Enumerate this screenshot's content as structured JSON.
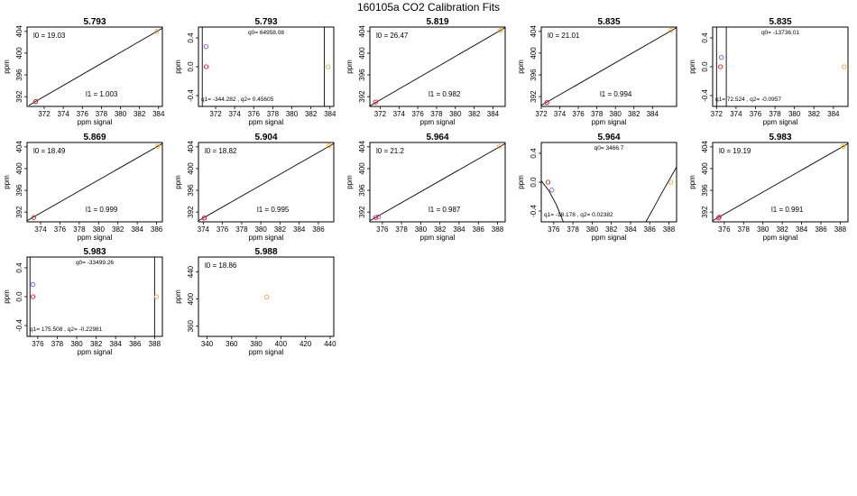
{
  "figure_title": "160105a   CO2 Calibration Fits",
  "axis_text": {
    "xlabel": "ppm signal",
    "ylabel": "ppm"
  },
  "colors": {
    "line": "#000000",
    "point_low": "#e31a1c",
    "point_mid": "#9a4dd6",
    "point_high": "#f5a623"
  },
  "chart_data": [
    {
      "type": "line",
      "title": "5.793",
      "model": "linear",
      "xlim": [
        370.2,
        384.4
      ],
      "ylim": [
        390.2,
        404.8
      ],
      "xticks": [
        372,
        374,
        376,
        378,
        380,
        382,
        384
      ],
      "yticks": [
        392,
        396,
        400,
        404
      ],
      "yticklabels": [
        "392",
        "396",
        "400",
        "404"
      ],
      "line": [
        [
          370.4,
          390.4
        ],
        [
          384.4,
          404.6
        ]
      ],
      "points": [
        {
          "x": 371.1,
          "y": 391.1,
          "c": "point_mid"
        },
        {
          "x": 371.1,
          "y": 391.1,
          "c": "point_low"
        },
        {
          "x": 383.8,
          "y": 404.0,
          "c": "point_high"
        }
      ],
      "annotations": [
        {
          "text": "l0 =  19.03",
          "pos": "top-left"
        },
        {
          "text": "l1 =  1.003",
          "pos": "bottom-mid"
        }
      ]
    },
    {
      "type": "scatter",
      "title": "5.793",
      "model": "quadratic",
      "xlim": [
        370.2,
        384.4
      ],
      "ylim": [
        -0.55,
        0.55
      ],
      "xticks": [
        372,
        374,
        376,
        378,
        380,
        382,
        384
      ],
      "yticks": [
        -0.4,
        0,
        0.4
      ],
      "yticklabels": [
        "-0.4",
        "0.0",
        "0.4"
      ],
      "curve_vlines": [
        [
          370.6,
          -0.55,
          0.55
        ],
        [
          383.4,
          -0.55,
          0.55
        ]
      ],
      "points": [
        {
          "x": 371.0,
          "y": 0.28,
          "c": "point_mid"
        },
        {
          "x": 371.0,
          "y": 0.0,
          "c": "point_low"
        },
        {
          "x": 383.8,
          "y": 0.0,
          "c": "point_high"
        }
      ],
      "annotations": [
        {
          "text": "q0= 64958.08",
          "pos": "top-mid"
        },
        {
          "text": "q1= -344.282 , q2= 0.45605",
          "pos": "bottom-left"
        }
      ]
    },
    {
      "type": "line",
      "title": "5.819",
      "model": "linear",
      "xlim": [
        370.9,
        385.3
      ],
      "ylim": [
        390.2,
        404.8
      ],
      "xticks": [
        372,
        374,
        376,
        378,
        380,
        382,
        384
      ],
      "yticks": [
        392,
        396,
        400,
        404
      ],
      "yticklabels": [
        "392",
        "396",
        "400",
        "404"
      ],
      "line": [
        [
          370.9,
          390.3
        ],
        [
          385.3,
          404.7
        ]
      ],
      "points": [
        {
          "x": 371.5,
          "y": 391.0,
          "c": "point_low"
        },
        {
          "x": 384.8,
          "y": 404.2,
          "c": "point_high"
        }
      ],
      "annotations": [
        {
          "text": "l0 =  26.47",
          "pos": "top-left"
        },
        {
          "text": "l1 =  0.982",
          "pos": "bottom-mid"
        }
      ]
    },
    {
      "type": "line",
      "title": "5.835",
      "model": "linear",
      "xlim": [
        372.0,
        386.6
      ],
      "ylim": [
        390.2,
        404.8
      ],
      "xticks": [
        372,
        374,
        376,
        378,
        380,
        382,
        384
      ],
      "yticks": [
        392,
        396,
        400,
        404
      ],
      "yticklabels": [
        "392",
        "396",
        "400",
        "404"
      ],
      "line": [
        [
          372.0,
          390.4
        ],
        [
          386.6,
          404.7
        ]
      ],
      "points": [
        {
          "x": 372.6,
          "y": 390.9,
          "c": "point_mid"
        },
        {
          "x": 372.6,
          "y": 390.9,
          "c": "point_low"
        },
        {
          "x": 386.0,
          "y": 404.2,
          "c": "point_high"
        }
      ],
      "annotations": [
        {
          "text": "l0 =  21.01",
          "pos": "top-left"
        },
        {
          "text": "l1 =  0.994",
          "pos": "bottom-mid"
        }
      ]
    },
    {
      "type": "scatter",
      "title": "5.835",
      "model": "quadratic",
      "xlim": [
        371.6,
        385.5
      ],
      "ylim": [
        -0.55,
        0.55
      ],
      "xticks": [
        372,
        374,
        376,
        378,
        380,
        382,
        384
      ],
      "yticks": [
        -0.4,
        0,
        0.4
      ],
      "yticklabels": [
        "-0.4",
        "0.0",
        "0.4"
      ],
      "curve_vlines": [
        [
          372.0,
          -0.55,
          0.55
        ],
        [
          373.0,
          -0.55,
          0.55
        ]
      ],
      "points": [
        {
          "x": 372.5,
          "y": 0.13,
          "c": "point_mid"
        },
        {
          "x": 372.4,
          "y": 0.0,
          "c": "point_low"
        },
        {
          "x": 385.1,
          "y": 0.0,
          "c": "point_high"
        }
      ],
      "annotations": [
        {
          "text": "q0= -13736.01",
          "pos": "top-mid"
        },
        {
          "text": "q1= 72.524 , q2= -0.0957",
          "pos": "bottom-left"
        }
      ]
    },
    {
      "type": "line",
      "title": "5.869",
      "model": "linear",
      "xlim": [
        372.6,
        386.6
      ],
      "ylim": [
        390.2,
        404.8
      ],
      "xticks": [
        374,
        376,
        378,
        380,
        382,
        384,
        386
      ],
      "yticks": [
        392,
        396,
        400,
        404
      ],
      "yticklabels": [
        "392",
        "396",
        "400",
        "404"
      ],
      "line": [
        [
          372.6,
          390.4
        ],
        [
          386.6,
          404.6
        ]
      ],
      "points": [
        {
          "x": 373.3,
          "y": 391.0,
          "c": "point_low"
        },
        {
          "x": 386.1,
          "y": 404.1,
          "c": "point_high"
        }
      ],
      "annotations": [
        {
          "text": "l0 =  18.49",
          "pos": "top-left"
        },
        {
          "text": "l1 =  0.999",
          "pos": "bottom-mid"
        }
      ]
    },
    {
      "type": "line",
      "title": "5.904",
      "model": "linear",
      "xlim": [
        373.5,
        387.6
      ],
      "ylim": [
        390.2,
        404.8
      ],
      "xticks": [
        374,
        376,
        378,
        380,
        382,
        384,
        386
      ],
      "yticks": [
        392,
        396,
        400,
        404
      ],
      "yticklabels": [
        "392",
        "396",
        "400",
        "404"
      ],
      "line": [
        [
          373.5,
          390.4
        ],
        [
          387.6,
          404.6
        ]
      ],
      "points": [
        {
          "x": 374.1,
          "y": 390.9,
          "c": "point_mid"
        },
        {
          "x": 374.1,
          "y": 390.9,
          "c": "point_low"
        },
        {
          "x": 387.1,
          "y": 404.2,
          "c": "point_high"
        }
      ],
      "annotations": [
        {
          "text": "l0 =  18.82",
          "pos": "top-left"
        },
        {
          "text": "l1 =  0.995",
          "pos": "bottom-mid"
        }
      ]
    },
    {
      "type": "line",
      "title": "5.964",
      "model": "linear",
      "xlim": [
        374.7,
        388.8
      ],
      "ylim": [
        390.2,
        404.8
      ],
      "xticks": [
        376,
        378,
        380,
        382,
        384,
        386,
        388
      ],
      "yticks": [
        392,
        396,
        400,
        404
      ],
      "yticklabels": [
        "392",
        "396",
        "400",
        "404"
      ],
      "line": [
        [
          374.7,
          390.4
        ],
        [
          388.8,
          404.6
        ]
      ],
      "points": [
        {
          "x": 375.3,
          "y": 391.0,
          "c": "point_low"
        },
        {
          "x": 375.6,
          "y": 391.1,
          "c": "point_mid"
        },
        {
          "x": 388.2,
          "y": 404.1,
          "c": "point_high"
        }
      ],
      "annotations": [
        {
          "text": "l0 =  21.2",
          "pos": "top-left"
        },
        {
          "text": "l1 =  0.987",
          "pos": "bottom-mid"
        }
      ]
    },
    {
      "type": "scatter",
      "title": "5.964",
      "model": "quadratic",
      "xlim": [
        374.7,
        388.8
      ],
      "ylim": [
        -0.55,
        0.55
      ],
      "xticks": [
        376,
        378,
        380,
        382,
        384,
        386,
        388
      ],
      "yticks": [
        -0.4,
        0,
        0.4
      ],
      "yticklabels": [
        "-0.4",
        "0.0",
        "0.4"
      ],
      "curve_pts": [
        [
          [
            374.7,
            0.02
          ],
          [
            375.5,
            -0.12
          ],
          [
            376.3,
            -0.32
          ],
          [
            377.0,
            -0.55
          ]
        ],
        [
          [
            385.6,
            -0.55
          ],
          [
            386.4,
            -0.36
          ],
          [
            387.3,
            -0.14
          ],
          [
            388.8,
            0.21
          ]
        ]
      ],
      "points": [
        {
          "x": 375.4,
          "y": 0.0,
          "c": "point_low"
        },
        {
          "x": 375.8,
          "y": -0.11,
          "c": "point_mid"
        },
        {
          "x": 388.2,
          "y": 0.0,
          "c": "point_high"
        }
      ],
      "annotations": [
        {
          "text": "q0= 3466.7",
          "pos": "top-mid"
        },
        {
          "text": "q1= -18.178 , q2= 0.02382",
          "pos": "bottom-left"
        }
      ]
    },
    {
      "type": "line",
      "title": "5.983",
      "model": "linear",
      "xlim": [
        374.8,
        388.8
      ],
      "ylim": [
        390.2,
        404.8
      ],
      "xticks": [
        376,
        378,
        380,
        382,
        384,
        386,
        388
      ],
      "yticks": [
        392,
        396,
        400,
        404
      ],
      "yticklabels": [
        "392",
        "396",
        "400",
        "404"
      ],
      "line": [
        [
          374.8,
          390.4
        ],
        [
          388.8,
          404.6
        ]
      ],
      "points": [
        {
          "x": 375.4,
          "y": 390.9,
          "c": "point_low"
        },
        {
          "x": 375.5,
          "y": 391.1,
          "c": "point_mid"
        },
        {
          "x": 388.3,
          "y": 404.1,
          "c": "point_high"
        }
      ],
      "annotations": [
        {
          "text": "l0 =  19.19",
          "pos": "top-left"
        },
        {
          "text": "l1 =  0.991",
          "pos": "bottom-mid"
        }
      ]
    },
    {
      "type": "scatter",
      "title": "5.983",
      "model": "quadratic",
      "xlim": [
        374.9,
        388.8
      ],
      "ylim": [
        -0.55,
        0.55
      ],
      "xticks": [
        376,
        378,
        380,
        382,
        384,
        386,
        388
      ],
      "yticks": [
        -0.4,
        0,
        0.4
      ],
      "yticklabels": [
        "-0.4",
        "0.0",
        "0.4"
      ],
      "curve_vlines": [
        [
          375.2,
          -0.55,
          0.55
        ],
        [
          388.0,
          -0.55,
          0.55
        ]
      ],
      "points": [
        {
          "x": 375.5,
          "y": 0.17,
          "c": "point_mid"
        },
        {
          "x": 375.5,
          "y": 0.0,
          "c": "point_low"
        },
        {
          "x": 388.2,
          "y": 0.0,
          "c": "point_high"
        }
      ],
      "annotations": [
        {
          "text": "q0= -33499.26",
          "pos": "top-mid"
        },
        {
          "text": "q1= 175.508 , q2= -0.22981",
          "pos": "bottom-left"
        }
      ]
    },
    {
      "type": "scatter",
      "title": "5.988",
      "model": "single",
      "xlim": [
        333,
        443
      ],
      "ylim": [
        345,
        462
      ],
      "xticks": [
        340,
        360,
        380,
        400,
        420,
        440
      ],
      "yticks": [
        360,
        400,
        440
      ],
      "yticklabels": [
        "360",
        "400",
        "440"
      ],
      "points": [
        {
          "x": 388.5,
          "y": 403.0,
          "c": "point_high"
        }
      ],
      "annotations": [
        {
          "text": "l0 =  18.86",
          "pos": "top-left"
        }
      ]
    }
  ]
}
